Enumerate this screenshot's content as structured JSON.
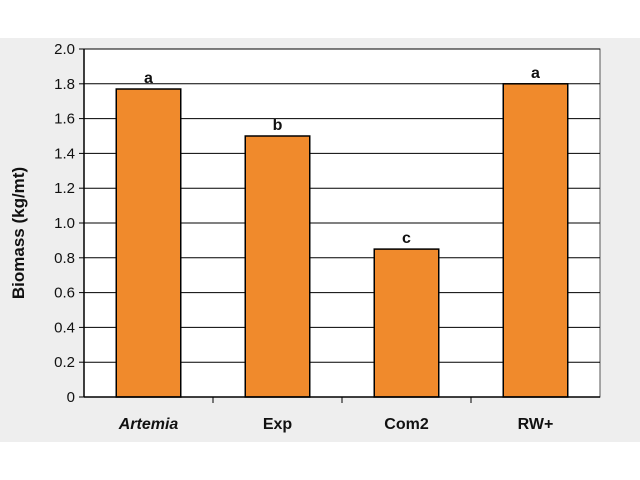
{
  "chart_data": {
    "type": "bar",
    "ylabel": "Biomass (kg/mt)",
    "xlabel": "",
    "ylim": [
      0,
      2.0
    ],
    "yticks": [
      "0",
      "0.2",
      "0.4",
      "0.6",
      "0.8",
      "1.0",
      "1.2",
      "1.4",
      "1.6",
      "1.8",
      "2.0"
    ],
    "categories": [
      "Artemia",
      "Exp",
      "Com2",
      "RW+"
    ],
    "italic_categories": [
      "Artemia"
    ],
    "values": [
      1.77,
      1.5,
      0.85,
      1.8
    ],
    "data_labels": [
      "a",
      "b",
      "c",
      "a"
    ],
    "grid": true,
    "legend": "none",
    "colors": {
      "bar_fill": "#f08a2c",
      "bar_stroke": "#000000",
      "plot_background": "#ffffff",
      "outer_background": "#eeeeee",
      "gridline": "#000000"
    }
  }
}
